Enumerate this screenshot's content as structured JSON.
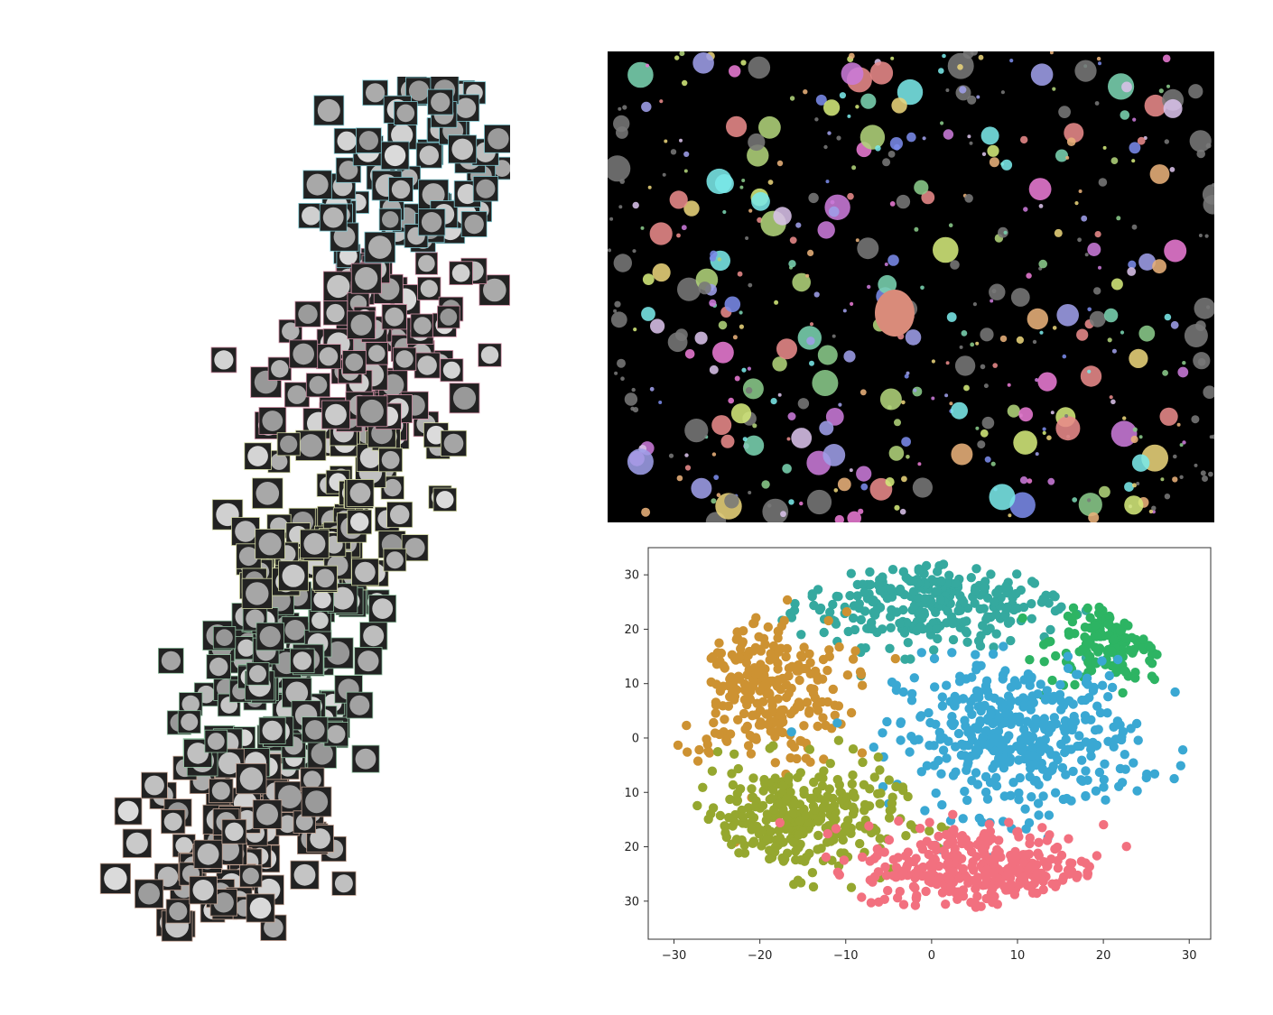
{
  "panels": {
    "left": {
      "kind": "image-montage",
      "tile_style": "grayscale-cell-crops"
    },
    "right_top": {
      "kind": "segmentation-overlay",
      "background": "#000000"
    }
  },
  "chart_data": {
    "type": "scatter",
    "title": "",
    "xlabel": "",
    "ylabel": "",
    "xlim": [
      -33,
      32.5
    ],
    "ylim": [
      -37,
      35
    ],
    "xticks": [
      -30,
      -20,
      -10,
      0,
      10,
      20,
      30
    ],
    "yticks": [
      -30,
      -20,
      -10,
      0,
      10,
      20,
      30
    ],
    "xtick_labels": [
      "−30",
      "−20",
      "−10",
      "0",
      "10",
      "20",
      "30"
    ],
    "ytick_labels": [
      "−30",
      "−20",
      "−10",
      "0",
      "10",
      "20",
      "30"
    ],
    "grid": false,
    "legend": "none",
    "series": [
      {
        "color": "#35a99f",
        "center": [
          0,
          25
        ],
        "spread": [
          8,
          4
        ],
        "count": 320
      },
      {
        "color": "#2db463",
        "center": [
          22,
          18
        ],
        "spread": [
          4,
          4
        ],
        "count": 200
      },
      {
        "color": "#cd9232",
        "center": [
          -20,
          9
        ],
        "spread": [
          5,
          7
        ],
        "count": 280
      },
      {
        "color": "#3aa8d3",
        "center": [
          10,
          0
        ],
        "spread": [
          7,
          7
        ],
        "count": 420
      },
      {
        "color": "#95a72f",
        "center": [
          -16,
          -15
        ],
        "spread": [
          6,
          5
        ],
        "count": 330
      },
      {
        "color": "#f2707f",
        "center": [
          6,
          -24
        ],
        "spread": [
          7,
          4
        ],
        "count": 360
      }
    ]
  }
}
